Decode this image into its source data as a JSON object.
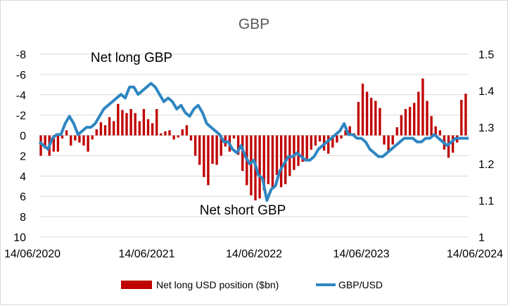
{
  "chart_data": {
    "type": "bar+line",
    "title": "GBP",
    "x_ticks": [
      "14/06/2020",
      "14/06/2021",
      "14/06/2022",
      "14/06/2023",
      "14/06/2024"
    ],
    "y_left": {
      "label": "",
      "ticks": [
        "-8",
        "-6",
        "-4",
        "-2",
        "0",
        "2",
        "4",
        "6",
        "8",
        "10"
      ],
      "reversed": true,
      "range": [
        -8,
        10
      ]
    },
    "y_right": {
      "label": "",
      "ticks": [
        "1.5",
        "1.4",
        "1.3",
        "1.2",
        "1.1",
        "1"
      ],
      "range": [
        1.0,
        1.5
      ]
    },
    "annotations": [
      "Net long GBP",
      "Net short GBP"
    ],
    "legend": {
      "position": "bottom",
      "entries": [
        "Net long USD position ($bn)",
        "GBP/USD"
      ]
    },
    "colors": {
      "bars": "#c00000",
      "line": "#2e86c1",
      "grid": "#d9d9d9"
    },
    "x_range_years": [
      2020.0,
      2024.0
    ],
    "series": [
      {
        "name": "Net long USD position ($bn)",
        "kind": "bar",
        "x_years": [
          2020.0,
          2020.04,
          2020.08,
          2020.12,
          2020.16,
          2020.2,
          2020.24,
          2020.28,
          2020.32,
          2020.36,
          2020.4,
          2020.44,
          2020.48,
          2020.52,
          2020.56,
          2020.6,
          2020.64,
          2020.68,
          2020.72,
          2020.76,
          2020.8,
          2020.84,
          2020.88,
          2020.92,
          2020.96,
          2021.0,
          2021.04,
          2021.08,
          2021.12,
          2021.16,
          2021.2,
          2021.24,
          2021.28,
          2021.32,
          2021.36,
          2021.4,
          2021.44,
          2021.48,
          2021.52,
          2021.56,
          2021.6,
          2021.64,
          2021.68,
          2021.72,
          2021.76,
          2021.8,
          2021.84,
          2021.88,
          2021.92,
          2021.96,
          2022.0,
          2022.04,
          2022.08,
          2022.12,
          2022.16,
          2022.2,
          2022.24,
          2022.28,
          2022.32,
          2022.36,
          2022.4,
          2022.44,
          2022.48,
          2022.52,
          2022.56,
          2022.6,
          2022.64,
          2022.68,
          2022.72,
          2022.76,
          2022.8,
          2022.84,
          2022.88,
          2022.92,
          2022.96,
          2023.0,
          2023.04,
          2023.08,
          2023.12,
          2023.16,
          2023.2,
          2023.24,
          2023.28,
          2023.32,
          2023.36,
          2023.4,
          2023.44,
          2023.48,
          2023.52,
          2023.56,
          2023.6,
          2023.64,
          2023.68,
          2023.72,
          2023.76,
          2023.8,
          2023.84,
          2023.88,
          2023.92,
          2023.96
        ],
        "values": [
          2.0,
          1.3,
          2.0,
          1.6,
          1.6,
          0.3,
          -0.5,
          1.0,
          0.5,
          0.7,
          1.0,
          1.6,
          0.4,
          -0.6,
          -1.3,
          -1.0,
          -1.8,
          -1.4,
          -3.1,
          -2.5,
          -2.2,
          -2.6,
          -2.2,
          -1.4,
          -2.6,
          -1.6,
          -1.2,
          -2.6,
          -0.2,
          -0.4,
          -0.5,
          0.4,
          0.2,
          -0.6,
          -1.0,
          0.5,
          2.0,
          2.9,
          4.1,
          4.9,
          2.8,
          2.9,
          2.0,
          1.1,
          1.6,
          0.3,
          1.9,
          3.5,
          4.9,
          5.9,
          6.4,
          6.2,
          5.4,
          4.8,
          5.1,
          3.9,
          5.1,
          4.8,
          4.0,
          3.4,
          3.0,
          2.6,
          2.3,
          1.4,
          1.0,
          0.6,
          1.5,
          1.8,
          1.2,
          0.7,
          0.3,
          -0.5,
          -0.9,
          -0.2,
          -3.3,
          -5.1,
          -4.3,
          -3.7,
          -3.4,
          -2.7,
          0.9,
          1.6,
          0.9,
          -0.8,
          -2.0,
          -2.6,
          -2.8,
          -3.2,
          -4.3,
          -5.6,
          -3.4,
          -1.9,
          -0.9,
          -0.5,
          1.4,
          2.2,
          1.7,
          0.7,
          -3.5,
          -4.1
        ]
      },
      {
        "name": "GBP/USD",
        "kind": "line",
        "x_years": [
          2020.0,
          2020.04,
          2020.08,
          2020.12,
          2020.16,
          2020.2,
          2020.24,
          2020.28,
          2020.32,
          2020.36,
          2020.4,
          2020.44,
          2020.48,
          2020.52,
          2020.56,
          2020.6,
          2020.64,
          2020.68,
          2020.72,
          2020.76,
          2020.8,
          2020.84,
          2020.88,
          2020.92,
          2020.96,
          2021.0,
          2021.04,
          2021.08,
          2021.12,
          2021.16,
          2021.2,
          2021.24,
          2021.28,
          2021.32,
          2021.36,
          2021.4,
          2021.44,
          2021.48,
          2021.52,
          2021.56,
          2021.6,
          2021.64,
          2021.68,
          2021.72,
          2021.76,
          2021.8,
          2021.84,
          2021.88,
          2021.92,
          2021.96,
          2022.0,
          2022.04,
          2022.08,
          2022.12,
          2022.16,
          2022.2,
          2022.24,
          2022.28,
          2022.32,
          2022.36,
          2022.4,
          2022.44,
          2022.48,
          2022.52,
          2022.56,
          2022.6,
          2022.64,
          2022.68,
          2022.72,
          2022.76,
          2022.8,
          2022.84,
          2022.88,
          2022.92,
          2022.96,
          2023.0,
          2023.04,
          2023.08,
          2023.12,
          2023.16,
          2023.2,
          2023.24,
          2023.28,
          2023.32,
          2023.36,
          2023.4,
          2023.44,
          2023.48,
          2023.52,
          2023.56,
          2023.6,
          2023.64,
          2023.68,
          2023.72,
          2023.76,
          2023.8,
          2023.84,
          2023.88,
          2023.92,
          2023.96,
          2024.0
        ],
        "values": [
          1.26,
          1.25,
          1.24,
          1.27,
          1.28,
          1.28,
          1.31,
          1.33,
          1.31,
          1.28,
          1.29,
          1.3,
          1.3,
          1.31,
          1.33,
          1.35,
          1.36,
          1.37,
          1.38,
          1.39,
          1.38,
          1.41,
          1.41,
          1.39,
          1.4,
          1.41,
          1.42,
          1.41,
          1.39,
          1.37,
          1.38,
          1.37,
          1.35,
          1.36,
          1.34,
          1.33,
          1.35,
          1.36,
          1.34,
          1.31,
          1.3,
          1.29,
          1.28,
          1.26,
          1.26,
          1.24,
          1.23,
          1.25,
          1.22,
          1.2,
          1.21,
          1.17,
          1.16,
          1.1,
          1.13,
          1.14,
          1.18,
          1.2,
          1.22,
          1.22,
          1.23,
          1.22,
          1.21,
          1.21,
          1.22,
          1.24,
          1.25,
          1.26,
          1.27,
          1.28,
          1.29,
          1.31,
          1.28,
          1.28,
          1.27,
          1.27,
          1.26,
          1.24,
          1.23,
          1.22,
          1.22,
          1.23,
          1.24,
          1.25,
          1.26,
          1.27,
          1.27,
          1.27,
          1.26,
          1.26,
          1.27,
          1.27,
          1.28,
          1.27,
          1.26,
          1.25,
          1.26,
          1.27,
          1.27,
          1.27,
          1.27
        ]
      }
    ]
  }
}
